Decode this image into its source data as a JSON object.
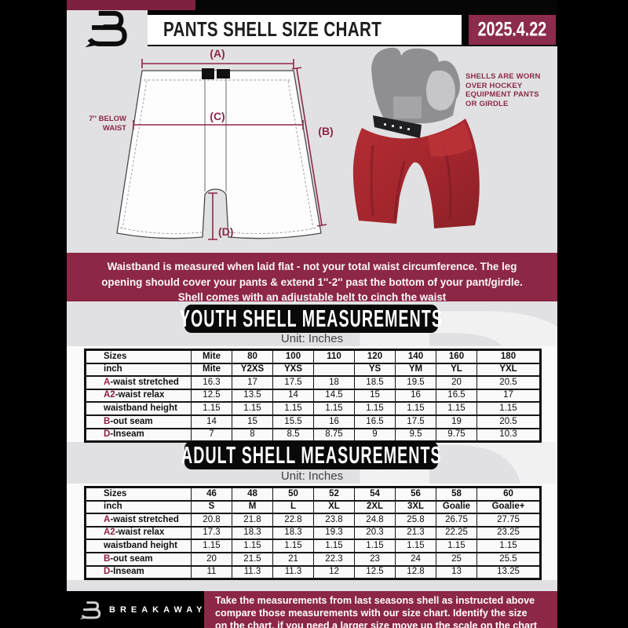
{
  "header": {
    "title": "PANTS SHELL SIZE CHART",
    "date": "2025.4.22"
  },
  "diagram": {
    "label_a": "(A)",
    "label_b": "(B)",
    "label_c": "(C)",
    "label_d": "(D)",
    "waist_note": [
      "7'' BELOW",
      "WAIST"
    ],
    "photo_note": [
      "SHELLS ARE WORN",
      "OVER HOCKEY",
      "EQUIPMENT PANTS",
      "OR GIRDLE"
    ]
  },
  "notice": {
    "lines": [
      "Waistband is measured when laid flat - not your total waist circumference. The leg",
      "opening should cover your pants & extend 1''-2'' past the bottom of your pant/girdle.",
      "Shell comes with an adjustable belt to cinch the waist"
    ]
  },
  "youth": {
    "heading": "YOUTH SHELL MEASUREMENTS",
    "unit": "Unit: Inches",
    "table": {
      "rows": [
        {
          "prefix": "",
          "label": "Sizes",
          "bold": true,
          "values": [
            "Mite",
            "80",
            "100",
            "110",
            "120",
            "140",
            "160",
            "180"
          ]
        },
        {
          "prefix": "",
          "label": "inch",
          "bold": true,
          "values": [
            "Mite",
            "Y2XS",
            "YXS",
            "",
            "YS",
            "YM",
            "YL",
            "YXL"
          ]
        },
        {
          "prefix": "A",
          "label": "-waist stretched",
          "bold": false,
          "values": [
            "16.3",
            "17",
            "17.5",
            "18",
            "18.5",
            "19.5",
            "20",
            "20.5"
          ]
        },
        {
          "prefix": "A2",
          "label": "-waist relax",
          "bold": false,
          "values": [
            "12.5",
            "13.5",
            "14",
            "14.5",
            "15",
            "16",
            "16.5",
            "17"
          ]
        },
        {
          "prefix": "",
          "label": "waistband height",
          "bold": false,
          "values": [
            "1.15",
            "1.15",
            "1.15",
            "1.15",
            "1.15",
            "1.15",
            "1.15",
            "1.15"
          ]
        },
        {
          "prefix": "B",
          "label": "-out seam",
          "bold": false,
          "values": [
            "14",
            "15",
            "15.5",
            "16",
            "16.5",
            "17.5",
            "19",
            "20.5"
          ]
        },
        {
          "prefix": "D",
          "label": "-Inseam",
          "bold": false,
          "values": [
            "7",
            "8",
            "8.5",
            "8.75",
            "9",
            "9.5",
            "9.75",
            "10.3"
          ]
        }
      ]
    }
  },
  "adult": {
    "heading": "ADULT SHELL MEASUREMENTS",
    "unit": "Unit: Inches",
    "table": {
      "rows": [
        {
          "prefix": "",
          "label": "Sizes",
          "bold": true,
          "values": [
            "46",
            "48",
            "50",
            "52",
            "54",
            "56",
            "58",
            "60"
          ]
        },
        {
          "prefix": "",
          "label": "inch",
          "bold": true,
          "values": [
            "S",
            "M",
            "L",
            "XL",
            "2XL",
            "3XL",
            "Goalie",
            "Goalie+"
          ]
        },
        {
          "prefix": "A",
          "label": "-waist stretched",
          "bold": false,
          "values": [
            "20.8",
            "21.8",
            "22.8",
            "23.8",
            "24.8",
            "25.8",
            "26.75",
            "27.75"
          ]
        },
        {
          "prefix": "A2",
          "label": "-waist relax",
          "bold": false,
          "values": [
            "17.3",
            "18.3",
            "18.3",
            "19.3",
            "20.3",
            "21.3",
            "22.25",
            "23.25"
          ]
        },
        {
          "prefix": "",
          "label": "waistband height",
          "bold": false,
          "values": [
            "1.15",
            "1.15",
            "1.15",
            "1.15",
            "1.15",
            "1.15",
            "1.15",
            "1.15"
          ]
        },
        {
          "prefix": "B",
          "label": "-out seam",
          "bold": false,
          "values": [
            "20",
            "21.5",
            "21",
            "22.3",
            "23",
            "24",
            "25",
            "25.5"
          ]
        },
        {
          "prefix": "D",
          "label": "-Inseam",
          "bold": false,
          "values": [
            "11",
            "11.3",
            "11.3",
            "12",
            "12.5",
            "12.8",
            "13",
            "13.25"
          ]
        }
      ]
    }
  },
  "footer": {
    "brand": "BREAKAWAY",
    "lines": [
      "Take the measurements from last seasons shell as instructed above",
      "compare those measurements  with our size chart. Identify the size",
      "on the chart, if you need a larger size move up the scale on the chart"
    ]
  },
  "colors": {
    "maroon": "#8c2746",
    "maroon_dark": "#7e2040",
    "accent_letter": "#8e1f3e",
    "bg_gray": "#e1e1e3",
    "shell_red": "#a8282e",
    "black": "#090909"
  }
}
